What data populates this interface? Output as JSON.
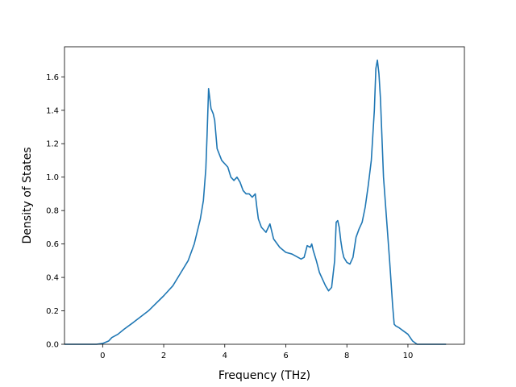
{
  "chart_data": {
    "type": "line",
    "title": "",
    "xlabel": "Frequency (THz)",
    "ylabel": "Density of States",
    "xlim": [
      -1.25,
      11.85
    ],
    "ylim": [
      0.0,
      1.78
    ],
    "xticks": [
      0,
      2,
      4,
      6,
      8,
      10
    ],
    "xtick_labels": [
      "0",
      "2",
      "4",
      "6",
      "8",
      "10"
    ],
    "yticks": [
      0.0,
      0.2,
      0.4,
      0.6,
      0.8,
      1.0,
      1.2,
      1.4,
      1.6
    ],
    "ytick_labels": [
      "0.0",
      "0.2",
      "0.4",
      "0.6",
      "0.8",
      "1.0",
      "1.2",
      "1.4",
      "1.6"
    ],
    "grid": false,
    "legend": "none",
    "series": [
      {
        "color": "#1f77b4",
        "x": [
          -1.25,
          -0.2,
          0.0,
          0.2,
          0.3,
          0.5,
          0.7,
          1.0,
          1.5,
          2.0,
          2.3,
          2.5,
          2.8,
          3.0,
          3.2,
          3.3,
          3.38,
          3.42,
          3.47,
          3.55,
          3.62,
          3.67,
          3.75,
          3.9,
          4.1,
          4.2,
          4.3,
          4.4,
          4.5,
          4.6,
          4.7,
          4.8,
          4.9,
          5.0,
          5.05,
          5.1,
          5.2,
          5.35,
          5.48,
          5.6,
          5.8,
          6.0,
          6.2,
          6.4,
          6.5,
          6.6,
          6.7,
          6.8,
          6.85,
          6.9,
          7.0,
          7.1,
          7.2,
          7.3,
          7.4,
          7.5,
          7.6,
          7.65,
          7.7,
          7.75,
          7.8,
          7.85,
          7.9,
          8.0,
          8.1,
          8.2,
          8.3,
          8.4,
          8.5,
          8.6,
          8.7,
          8.8,
          8.9,
          8.95,
          9.0,
          9.05,
          9.1,
          9.2,
          9.3,
          9.4,
          9.5,
          9.55,
          9.6,
          9.7,
          9.85,
          10.0,
          10.15,
          10.3,
          10.5,
          11.25
        ],
        "y": [
          0.0,
          0.0,
          0.005,
          0.02,
          0.04,
          0.06,
          0.09,
          0.13,
          0.2,
          0.29,
          0.35,
          0.41,
          0.5,
          0.6,
          0.75,
          0.86,
          1.05,
          1.25,
          1.53,
          1.41,
          1.38,
          1.34,
          1.17,
          1.1,
          1.06,
          1.0,
          0.98,
          1.0,
          0.97,
          0.92,
          0.9,
          0.9,
          0.88,
          0.9,
          0.82,
          0.75,
          0.7,
          0.67,
          0.72,
          0.63,
          0.58,
          0.55,
          0.54,
          0.52,
          0.51,
          0.52,
          0.59,
          0.58,
          0.6,
          0.56,
          0.5,
          0.43,
          0.39,
          0.35,
          0.32,
          0.34,
          0.5,
          0.73,
          0.74,
          0.7,
          0.62,
          0.56,
          0.52,
          0.49,
          0.48,
          0.52,
          0.64,
          0.69,
          0.73,
          0.82,
          0.95,
          1.1,
          1.4,
          1.65,
          1.7,
          1.62,
          1.47,
          1.0,
          0.75,
          0.5,
          0.23,
          0.12,
          0.11,
          0.1,
          0.08,
          0.06,
          0.02,
          0.0,
          0.0,
          0.0
        ]
      }
    ]
  }
}
